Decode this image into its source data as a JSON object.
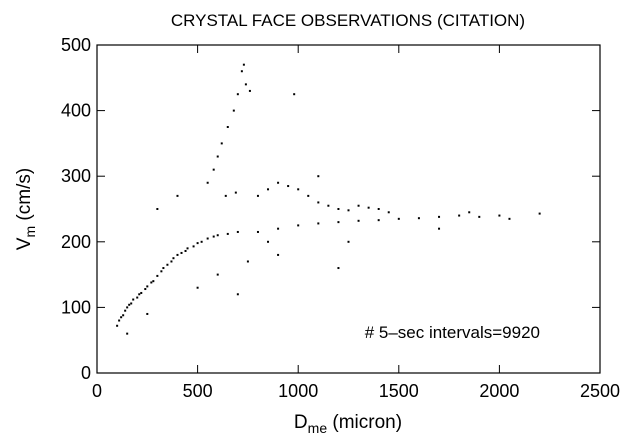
{
  "chart_data": {
    "type": "scatter",
    "title": "CRYSTAL FACE OBSERVATIONS (CITATION)",
    "xlabel": {
      "main": "D",
      "sub": "me",
      "rest": " (micron)"
    },
    "ylabel": {
      "main": "V",
      "sub": "m",
      "rest": " (cm/s)"
    },
    "annotation": "# 5–sec intervals=9920",
    "color": "#000000",
    "xlim": [
      0,
      2500
    ],
    "xticks": [
      0,
      500,
      1000,
      1500,
      2000,
      2500
    ],
    "ylim": [
      0,
      500
    ],
    "yticks": [
      0,
      100,
      200,
      300,
      400,
      500
    ],
    "x": [
      100,
      110,
      120,
      130,
      140,
      150,
      160,
      170,
      180,
      200,
      210,
      220,
      240,
      250,
      270,
      280,
      300,
      320,
      330,
      350,
      370,
      380,
      400,
      420,
      440,
      450,
      480,
      500,
      520,
      550,
      580,
      600,
      650,
      700,
      550,
      580,
      600,
      620,
      650,
      680,
      700,
      720,
      730,
      740,
      760,
      640,
      690,
      800,
      850,
      900,
      950,
      1000,
      1050,
      1100,
      1150,
      1200,
      1250,
      1300,
      1350,
      1400,
      1450,
      800,
      900,
      1000,
      1100,
      1200,
      1300,
      1400,
      1500,
      1600,
      1700,
      1800,
      1850,
      1900,
      2000,
      2050,
      2200,
      300,
      400,
      500,
      600,
      700,
      900,
      1200,
      1100,
      980,
      150,
      250,
      750,
      850,
      1250,
      1700
    ],
    "y": [
      72,
      80,
      85,
      88,
      95,
      100,
      104,
      106,
      112,
      115,
      120,
      122,
      128,
      132,
      138,
      140,
      148,
      155,
      160,
      165,
      170,
      175,
      180,
      183,
      186,
      190,
      193,
      198,
      200,
      205,
      208,
      210,
      212,
      215,
      290,
      310,
      330,
      350,
      375,
      400,
      425,
      460,
      470,
      440,
      430,
      270,
      275,
      270,
      280,
      290,
      285,
      280,
      270,
      260,
      255,
      250,
      248,
      255,
      252,
      250,
      245,
      215,
      220,
      225,
      228,
      230,
      232,
      233,
      235,
      236,
      238,
      240,
      245,
      238,
      240,
      235,
      243,
      250,
      270,
      130,
      150,
      120,
      180,
      160,
      300,
      425,
      60,
      90,
      170,
      200,
      200,
      220
    ]
  }
}
